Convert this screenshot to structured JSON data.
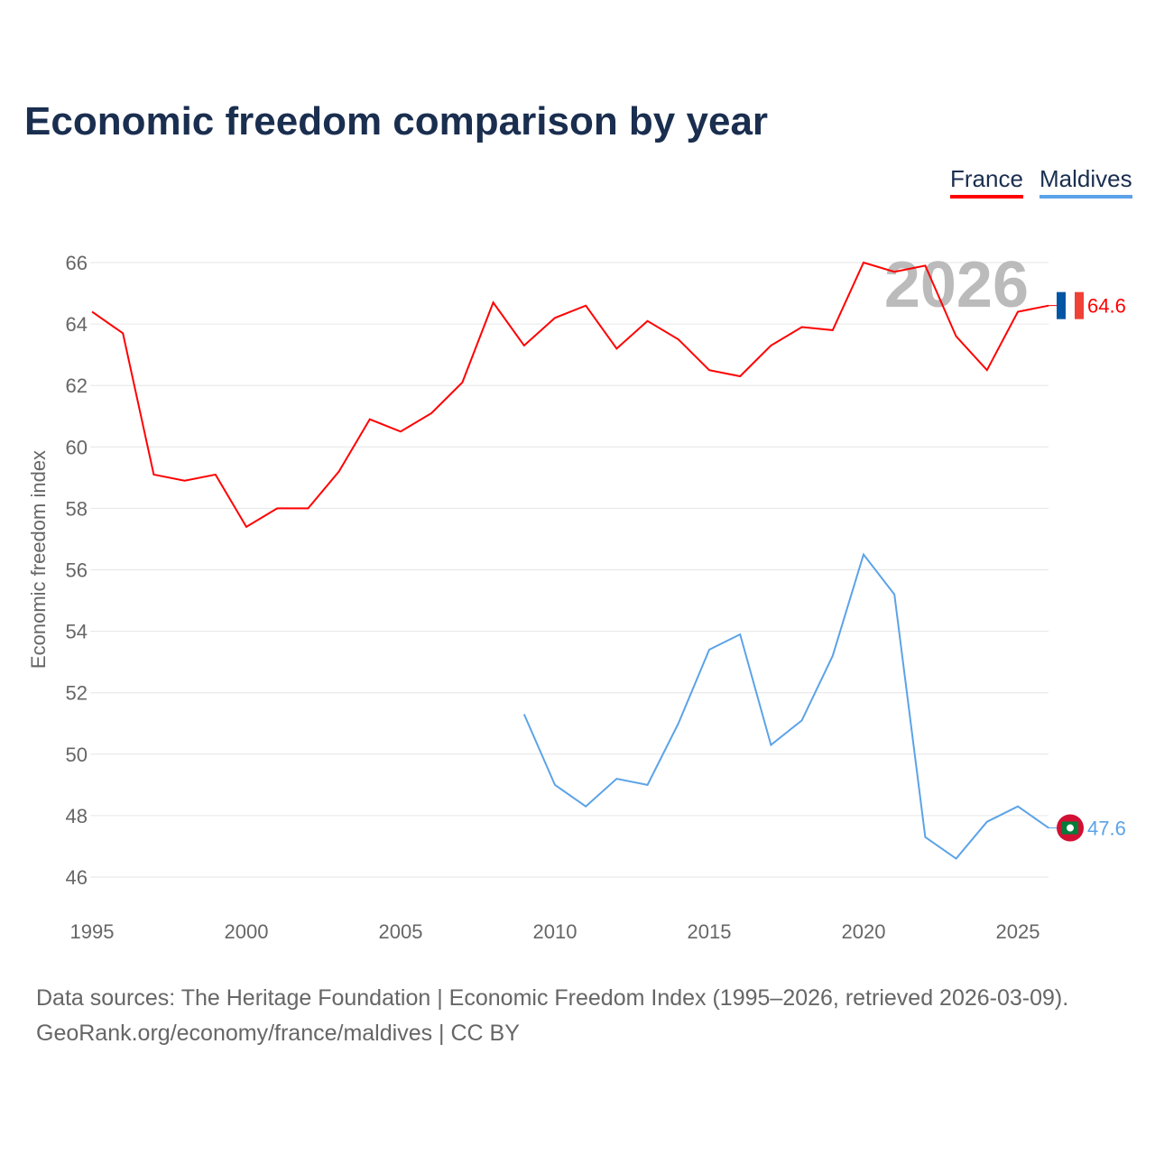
{
  "chart_data": {
    "type": "line",
    "title": "Economic freedom comparison by year",
    "ylabel": "Economic freedom index",
    "xlabel": "",
    "ylim": [
      45,
      67
    ],
    "xlim": [
      1995,
      2026
    ],
    "yticks": [
      46,
      48,
      50,
      52,
      54,
      56,
      58,
      60,
      62,
      64,
      66
    ],
    "xticks": [
      1995,
      2000,
      2005,
      2010,
      2015,
      2020,
      2025
    ],
    "grid": true,
    "legend_position": "top-right",
    "year_watermark": "2026",
    "series": [
      {
        "name": "France",
        "color": "#ff0000",
        "end_label": "64.6",
        "x": [
          1995,
          1996,
          1997,
          1998,
          1999,
          2000,
          2001,
          2002,
          2003,
          2004,
          2005,
          2006,
          2007,
          2008,
          2009,
          2010,
          2011,
          2012,
          2013,
          2014,
          2015,
          2016,
          2017,
          2018,
          2019,
          2020,
          2021,
          2022,
          2023,
          2024,
          2025,
          2026
        ],
        "values": [
          64.4,
          63.7,
          59.1,
          58.9,
          59.1,
          57.4,
          58.0,
          58.0,
          59.2,
          60.9,
          60.5,
          61.1,
          62.1,
          64.7,
          63.3,
          64.2,
          64.6,
          63.2,
          64.1,
          63.5,
          62.5,
          62.3,
          63.3,
          63.9,
          63.8,
          66.0,
          65.7,
          65.9,
          63.6,
          62.5,
          64.4,
          64.6
        ]
      },
      {
        "name": "Maldives",
        "color": "#5ba3e8",
        "end_label": "47.6",
        "x": [
          2009,
          2010,
          2011,
          2012,
          2013,
          2014,
          2015,
          2016,
          2017,
          2018,
          2019,
          2020,
          2021,
          2022,
          2023,
          2024,
          2025,
          2026
        ],
        "values": [
          51.3,
          49.0,
          48.3,
          49.2,
          49.0,
          51.0,
          53.4,
          53.9,
          50.3,
          51.1,
          53.2,
          56.5,
          55.2,
          47.3,
          46.6,
          47.8,
          48.3,
          47.6
        ]
      }
    ]
  },
  "source_line1": "Data sources: The Heritage Foundation | Economic Freedom Index (1995–2026, retrieved 2026-03-09).",
  "source_line2": "GeoRank.org/economy/france/maldives | CC BY"
}
